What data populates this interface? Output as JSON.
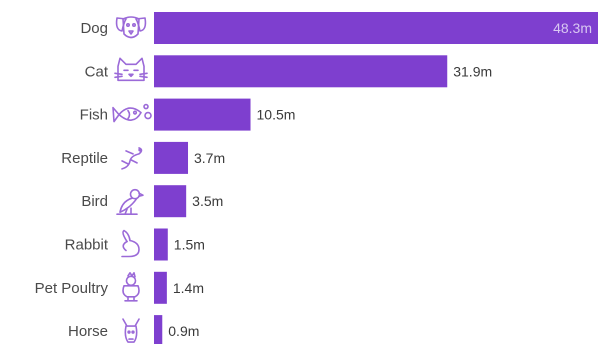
{
  "colors": {
    "bar": "#7e3fcf",
    "icon": "#9b6ad8",
    "label_text": "#4a4a4a",
    "value_text_outside": "#3a3a3a",
    "value_text_inside": "#d9c8f2"
  },
  "chart_data": {
    "type": "bar",
    "orientation": "horizontal",
    "unit_suffix": "m",
    "grid": false,
    "categories": [
      "Dog",
      "Cat",
      "Fish",
      "Reptile",
      "Bird",
      "Rabbit",
      "Pet Poultry",
      "Horse"
    ],
    "values": [
      48.3,
      31.9,
      10.5,
      3.7,
      3.5,
      1.5,
      1.4,
      0.9
    ],
    "value_labels": [
      "48.3m",
      "31.9m",
      "10.5m",
      "3.7m",
      "3.5m",
      "1.5m",
      "1.4m",
      "0.9m"
    ],
    "icons": [
      "dog-icon",
      "cat-icon",
      "fish-icon",
      "reptile-icon",
      "bird-icon",
      "rabbit-icon",
      "poultry-icon",
      "horse-icon"
    ],
    "xlim": [
      0,
      48.3
    ]
  }
}
